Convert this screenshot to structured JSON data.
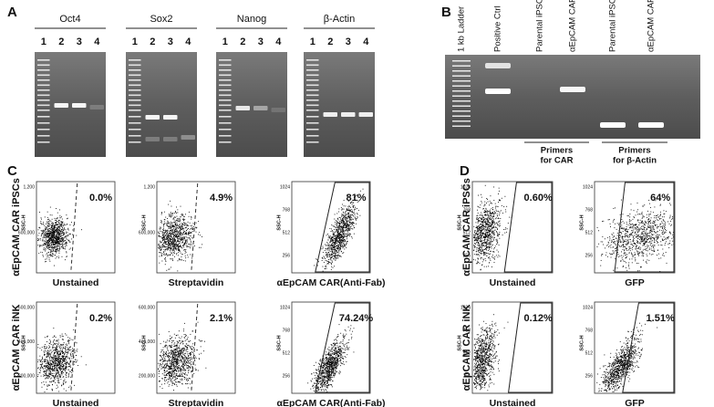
{
  "panel_a": {
    "label": "A",
    "gels": [
      {
        "title": "Oct4",
        "lanes": [
          "1",
          "2",
          "3",
          "4"
        ]
      },
      {
        "title": "Sox2",
        "lanes": [
          "1",
          "2",
          "3",
          "4"
        ]
      },
      {
        "title": "Nanog",
        "lanes": [
          "1",
          "2",
          "3",
          "4"
        ]
      },
      {
        "title": "β-Actin",
        "lanes": [
          "1",
          "2",
          "3",
          "4"
        ]
      }
    ]
  },
  "panel_b": {
    "label": "B",
    "lanes": [
      "1 kb Ladder",
      "Positive Ctrl",
      "Parental iPSC",
      "αEpCAM CAR iNK",
      "Parental iPSC",
      "αEpCAM CAR iNK"
    ],
    "primer_groups": [
      {
        "line1": "Primers",
        "line2": "for CAR"
      },
      {
        "line1": "Primers",
        "line2": "for β-Actin"
      }
    ]
  },
  "panel_c": {
    "label": "C",
    "rows": [
      {
        "label": "αEpCAM CAR iPSCs",
        "plots": [
          {
            "y_axis": "SSC-H",
            "yticks": [
              "1,200",
              "600,000"
            ],
            "percent": "0.0%",
            "x_label": "Unstained"
          },
          {
            "y_axis": "SSC-H",
            "yticks": [
              "1,200",
              "600,000"
            ],
            "percent": "4.9%",
            "x_label": "Streptavidin"
          },
          {
            "y_axis": "SSC-H",
            "yticks": [
              "1024",
              "768",
              "512",
              "256"
            ],
            "percent": "81%",
            "x_label": "αEpCAM CAR(Anti-Fab)"
          }
        ]
      },
      {
        "label": "αEpCAM CAR iNK",
        "plots": [
          {
            "y_axis": "SSC-H",
            "yticks": [
              "600,000",
              "400,000",
              "200,000"
            ],
            "percent": "0.2%",
            "x_label": "Unstained"
          },
          {
            "y_axis": "SSC-H",
            "yticks": [
              "600,000",
              "400,000",
              "200,000"
            ],
            "percent": "2.1%",
            "x_label": "Streptavidin"
          },
          {
            "y_axis": "SSC-H",
            "yticks": [
              "1024",
              "768",
              "512",
              "256"
            ],
            "percent": "74.24%",
            "x_label": "αEpCAM CAR(Anti-Fab)"
          }
        ]
      }
    ]
  },
  "panel_d": {
    "label": "D",
    "rows": [
      {
        "label": "αEpCAM CAR iPSCs",
        "plots": [
          {
            "y_axis": "SSC-H",
            "yticks": [
              "1024",
              "768",
              "512",
              "256"
            ],
            "percent": "0.60%",
            "x_label": "Unstained"
          },
          {
            "y_axis": "SSC-H",
            "yticks": [
              "1024",
              "768",
              "512",
              "256"
            ],
            "percent": "64%",
            "x_label": "GFP"
          }
        ]
      },
      {
        "label": "αEpCAM CAR iNK",
        "plots": [
          {
            "y_axis": "SSC-H",
            "yticks": [
              "1024",
              "768",
              "512",
              "256"
            ],
            "percent": "0.12%",
            "x_label": "Unstained"
          },
          {
            "y_axis": "SSC-H",
            "yticks": [
              "1024",
              "768",
              "512",
              "256"
            ],
            "percent": "1.51%",
            "x_label": "GFP"
          }
        ]
      }
    ]
  }
}
